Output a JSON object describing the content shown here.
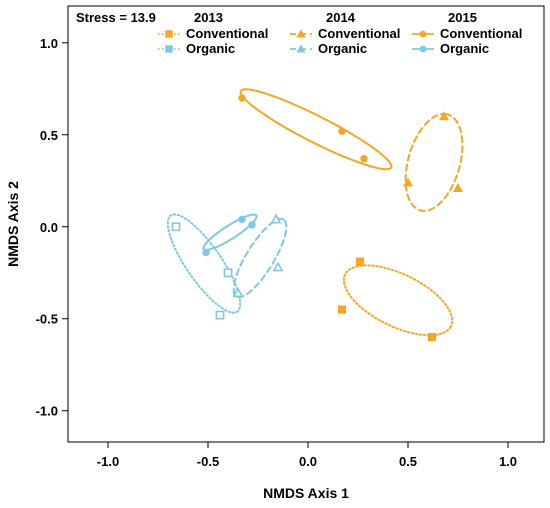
{
  "chart_data": {
    "type": "scatter",
    "xlabel": "NMDS Axis 1",
    "ylabel": "NMDS Axis 2",
    "xlim": [
      -1.2,
      1.18
    ],
    "ylim": [
      -1.17,
      1.2
    ],
    "xticks": [
      "-1.0",
      "-0.5",
      "0.0",
      "0.5",
      "1.0"
    ],
    "yticks": [
      "-1.0",
      "-0.5",
      "0.0",
      "0.5",
      "1.0"
    ],
    "xtick_values": [
      -1.0,
      -0.5,
      0.0,
      0.5,
      1.0
    ],
    "ytick_values": [
      -1.0,
      -0.5,
      0.0,
      0.5,
      1.0
    ],
    "grid": false,
    "legend_placement": "top",
    "annotation": "Stress = 13.9",
    "colors": {
      "conventional": "#f5a623",
      "organic": "#7ec8e3"
    },
    "legend": [
      {
        "year": "2013",
        "entries": [
          "Conventional",
          "Organic"
        ],
        "marker": "square"
      },
      {
        "year": "2014",
        "entries": [
          "Conventional",
          "Organic"
        ],
        "marker": "triangle"
      },
      {
        "year": "2015",
        "entries": [
          "Conventional",
          "Organic"
        ],
        "marker": "circle"
      }
    ],
    "series": [
      {
        "year": "2013",
        "system": "Conventional",
        "marker": "square",
        "filled": true,
        "line": "dotted",
        "points": [
          [
            0.26,
            -0.19
          ],
          [
            0.17,
            -0.45
          ],
          [
            0.62,
            -0.6
          ]
        ],
        "ellipse": {
          "cx": 0.45,
          "cy": -0.4,
          "rx": 0.3,
          "ry": 0.14,
          "angle": -29
        }
      },
      {
        "year": "2014",
        "system": "Conventional",
        "marker": "triangle",
        "filled": true,
        "line": "dashed",
        "points": [
          [
            0.68,
            0.6
          ],
          [
            0.5,
            0.24
          ],
          [
            0.75,
            0.21
          ]
        ],
        "ellipse": {
          "cx": 0.63,
          "cy": 0.35,
          "rx": 0.27,
          "ry": 0.13,
          "angle": 76
        }
      },
      {
        "year": "2015",
        "system": "Conventional",
        "marker": "circle",
        "filled": true,
        "line": "solid",
        "points": [
          [
            -0.33,
            0.7
          ],
          [
            0.17,
            0.52
          ],
          [
            0.28,
            0.37
          ]
        ],
        "ellipse": {
          "cx": 0.04,
          "cy": 0.53,
          "rx": 0.43,
          "ry": 0.07,
          "angle": -29
        }
      },
      {
        "year": "2013",
        "system": "Organic",
        "marker": "square",
        "filled": false,
        "line": "dotted",
        "points": [
          [
            -0.66,
            0.0
          ],
          [
            -0.4,
            -0.25
          ],
          [
            -0.44,
            -0.48
          ]
        ],
        "ellipse": {
          "cx": -0.52,
          "cy": -0.2,
          "rx": 0.31,
          "ry": 0.09,
          "angle": -58
        }
      },
      {
        "year": "2014",
        "system": "Organic",
        "marker": "triangle",
        "filled": false,
        "line": "dashed",
        "points": [
          [
            -0.16,
            0.04
          ],
          [
            -0.35,
            -0.36
          ],
          [
            -0.15,
            -0.22
          ]
        ],
        "ellipse": {
          "cx": -0.24,
          "cy": -0.17,
          "rx": 0.24,
          "ry": 0.07,
          "angle": 61
        }
      },
      {
        "year": "2015",
        "system": "Organic",
        "marker": "circle",
        "filled": true,
        "line": "solid",
        "points": [
          [
            -0.51,
            -0.14
          ],
          [
            -0.33,
            0.04
          ],
          [
            -0.28,
            0.01
          ]
        ],
        "ellipse": {
          "cx": -0.39,
          "cy": -0.03,
          "rx": 0.16,
          "ry": 0.035,
          "angle": 35
        }
      }
    ]
  }
}
